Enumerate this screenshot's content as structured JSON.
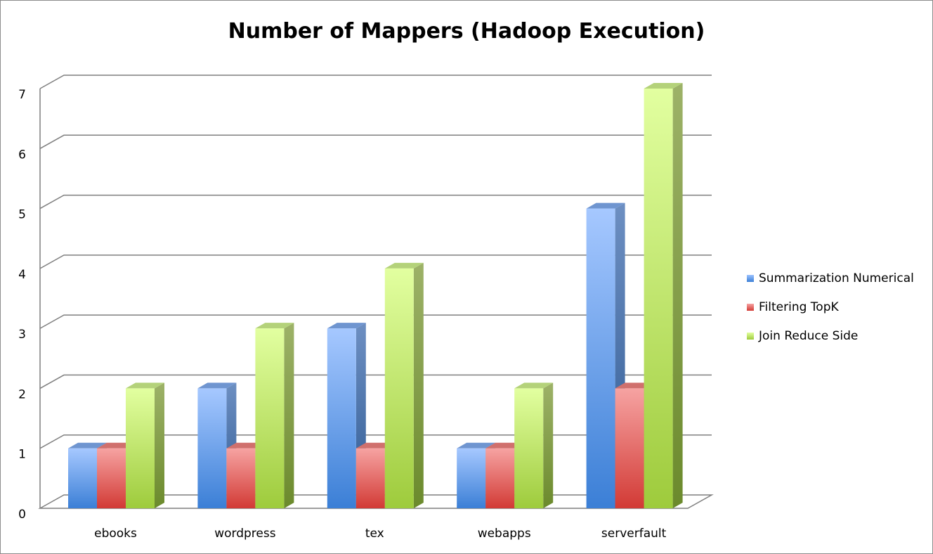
{
  "chart_data": {
    "type": "bar",
    "title": "Number of Mappers (Hadoop Execution)",
    "categories": [
      "ebooks",
      "wordpress",
      "tex",
      "webapps",
      "serverfault"
    ],
    "series": [
      {
        "name": "Summarization Numerical",
        "values": [
          1,
          2,
          3,
          1,
          5
        ],
        "color": "#4f81bd"
      },
      {
        "name": "Filtering TopK",
        "values": [
          1,
          1,
          1,
          1,
          2
        ],
        "color": "#c0504d"
      },
      {
        "name": "Join Reduce Side",
        "values": [
          2,
          3,
          4,
          2,
          7
        ],
        "color": "#9bbb59"
      }
    ],
    "ylim": [
      0,
      7
    ],
    "yticks": [
      "0",
      "1",
      "2",
      "3",
      "4",
      "5",
      "6",
      "7"
    ],
    "grid": true,
    "legend": "right"
  }
}
